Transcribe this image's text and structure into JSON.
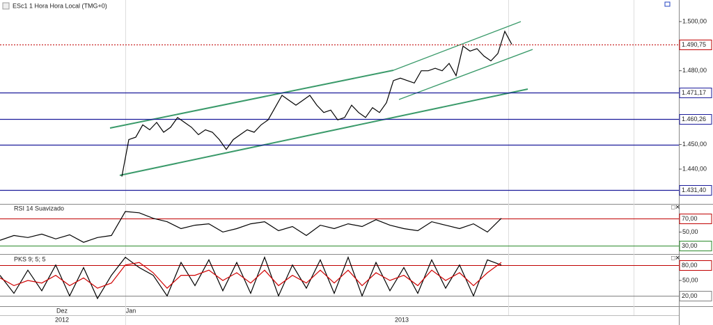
{
  "chart_data": [
    {
      "type": "line",
      "title": "ESc1 1 Hora Hora Local (TMG+0)",
      "series": [
        {
          "color": "#000000",
          "values": [
            1437,
            1452,
            1453,
            1458,
            1456,
            1459,
            1455,
            1457,
            1461,
            1459,
            1457,
            1454,
            1456,
            1455,
            1452,
            1448,
            1452,
            1454,
            1456,
            1455,
            1458,
            1460,
            1465,
            1470,
            1468,
            1466,
            1468,
            1470,
            1466,
            1463,
            1464,
            1460,
            1461,
            1466,
            1463,
            1461,
            1465,
            1463,
            1467,
            1476,
            1477,
            1476,
            1475,
            1480,
            1480,
            1481,
            1480,
            1483,
            1478,
            1490,
            1488,
            1489,
            1486,
            1484,
            1487,
            1496,
            1490.75
          ]
        }
      ],
      "ylim": [
        1426.13,
        1508.77
      ],
      "yticks": [
        {
          "value": 1500,
          "label": "1.500,00"
        },
        {
          "value": 1480,
          "label": "1.480,00"
        },
        {
          "value": 1450,
          "label": "1.450,00"
        },
        {
          "value": 1440,
          "label": "1.440,00"
        }
      ],
      "reference_lines": [
        {
          "value": 1490.75,
          "label": "1.490,75",
          "color": "#c00000"
        },
        {
          "value": 1471.17,
          "label": "1.471,17",
          "color": "#1a1a9a"
        },
        {
          "value": 1460.26,
          "label": "1.460,26",
          "color": "#1a1a9a"
        },
        {
          "value": 1450,
          "color": "#1a1a9a"
        },
        {
          "value": 1431.4,
          "label": "1.431,40",
          "color": "#1a1a9a"
        }
      ]
    },
    {
      "type": "line",
      "title": "RSI 14 Suavizado",
      "series": [
        {
          "color": "#000000",
          "values": [
            38,
            45,
            42,
            47,
            40,
            46,
            35,
            42,
            45,
            80,
            78,
            70,
            65,
            55,
            60,
            62,
            50,
            55,
            62,
            65,
            52,
            58,
            45,
            60,
            55,
            62,
            58,
            68,
            60,
            55,
            52,
            65,
            60,
            55,
            62,
            50,
            70
          ]
        }
      ],
      "ylim": [
        19,
        90
      ],
      "yticks": [
        {
          "value": 50,
          "label": "50,00"
        }
      ],
      "reference_lines": [
        {
          "value": 70,
          "label": "70,00",
          "color": "#c00000"
        },
        {
          "value": 30,
          "label": "30,00",
          "color": "#2a8a2a"
        }
      ]
    },
    {
      "type": "line",
      "title": "PKS 9; 5; 5",
      "series": [
        {
          "color": "#000000",
          "values": [
            60,
            25,
            70,
            30,
            80,
            20,
            75,
            15,
            60,
            95,
            75,
            60,
            20,
            85,
            40,
            90,
            30,
            85,
            25,
            95,
            20,
            80,
            35,
            90,
            25,
            95,
            20,
            85,
            30,
            75,
            25,
            90,
            35,
            80,
            20,
            90,
            80
          ]
        },
        {
          "color": "#d00000",
          "values": [
            55,
            40,
            50,
            45,
            60,
            40,
            55,
            35,
            45,
            80,
            85,
            65,
            35,
            60,
            60,
            70,
            50,
            65,
            45,
            70,
            40,
            60,
            45,
            70,
            45,
            70,
            40,
            65,
            50,
            60,
            40,
            70,
            50,
            65,
            40,
            65,
            85
          ]
        }
      ],
      "ylim": [
        0,
        100
      ],
      "yticks": [
        {
          "value": 50,
          "label": "50,00"
        }
      ],
      "reference_lines": [
        {
          "value": 80,
          "label": "80,00",
          "color": "#c00000"
        },
        {
          "value": 20,
          "label": "20,00",
          "color": "#808080"
        }
      ]
    }
  ],
  "time_axis": {
    "months": [
      "Dez",
      "Jan"
    ],
    "years": [
      "2012",
      "2013"
    ]
  }
}
